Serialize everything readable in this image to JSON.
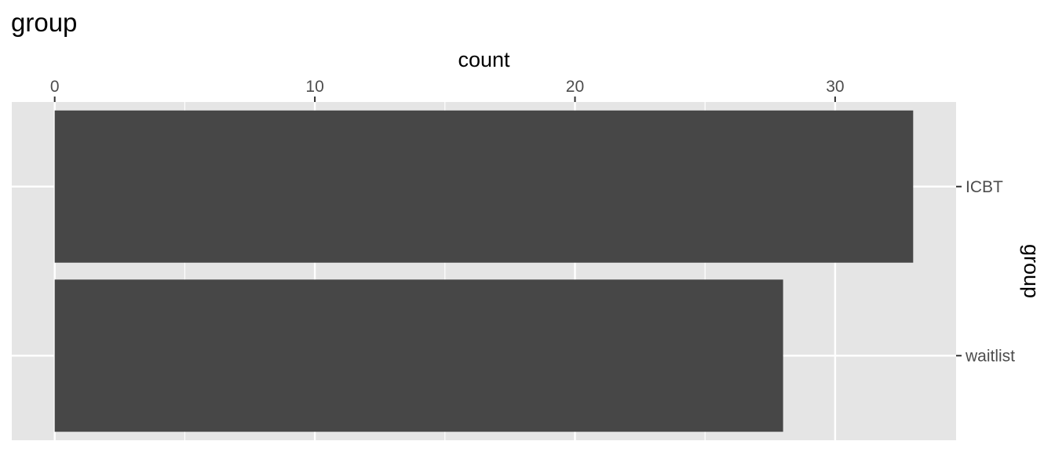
{
  "chart_data": {
    "type": "bar",
    "orientation": "horizontal",
    "title": "group",
    "xlabel": "count",
    "ylabel": "group",
    "x_axis_position": "top",
    "y_axis_position": "right",
    "categories": [
      "waitlist",
      "ICBT"
    ],
    "values": [
      28,
      33
    ],
    "xlim": [
      -1.65,
      34.65
    ],
    "x_ticks": [
      0,
      10,
      20,
      30
    ],
    "grid": true,
    "bar_color": "#474747",
    "panel_color": "#e5e5e5",
    "grid_color": "#ffffff"
  }
}
